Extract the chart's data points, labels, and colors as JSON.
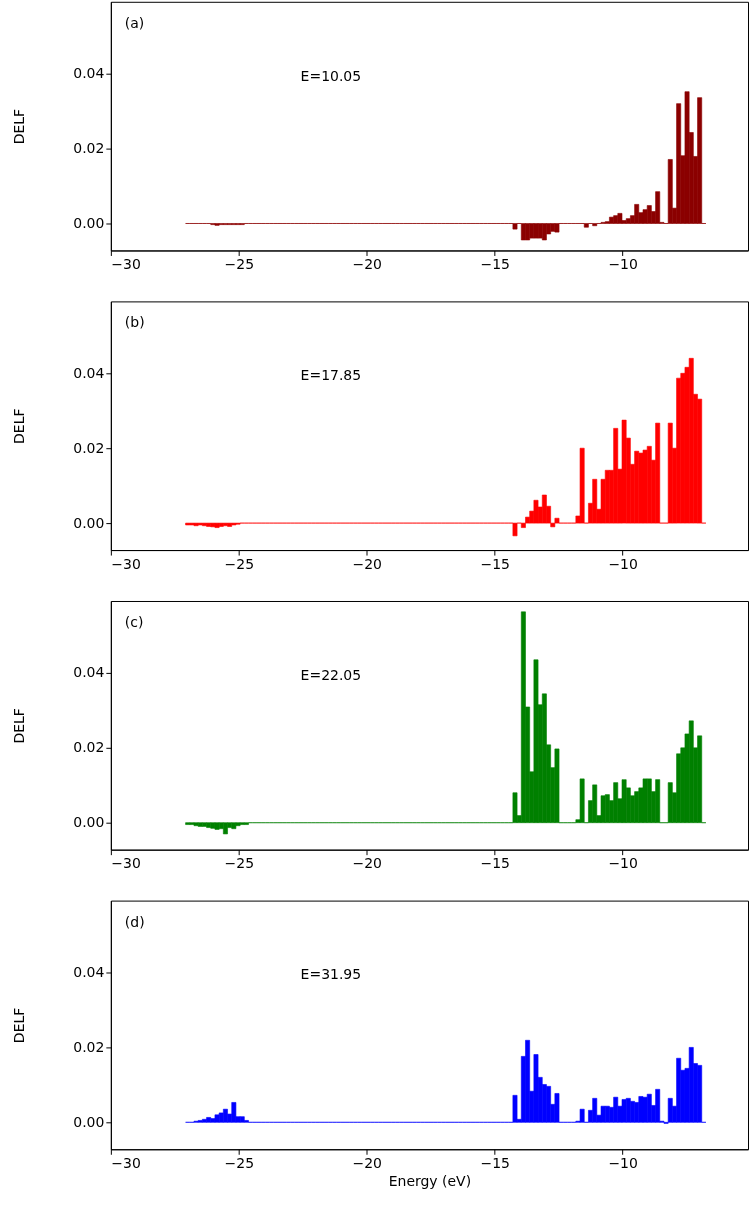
{
  "chart_data": [
    {
      "type": "histogram",
      "color": "#8b0000",
      "ylabel": "DELF",
      "annotations": [
        "(a)",
        "E=10.05"
      ],
      "xlim": [
        -30,
        -5.1
      ],
      "ylim": [
        -0.0072,
        0.0592
      ],
      "xticks": [
        {
          "value": -30,
          "label": "−30"
        },
        {
          "value": -25,
          "label": "−25"
        },
        {
          "value": -20,
          "label": "−20"
        },
        {
          "value": -15,
          "label": "−15"
        },
        {
          "value": -10,
          "label": "−10"
        }
      ],
      "yticks": [
        {
          "value": 0,
          "label": "0.00"
        },
        {
          "value": 0.02,
          "label": "0.02"
        },
        {
          "value": 0.04,
          "label": "0.04"
        }
      ],
      "bins": [
        -27.08,
        -26.916,
        -26.752,
        -26.588,
        -26.424,
        -26.26,
        -26.096,
        -25.932,
        -25.768,
        -25.604,
        -25.44,
        -25.276,
        -25.112,
        -24.948,
        -24.784,
        -24.62,
        -24.456,
        -24.292,
        -24.128,
        -23.964,
        -23.8,
        -23.636,
        -23.472,
        -23.308,
        -23.144,
        -22.98,
        -22.816,
        -22.652,
        -22.488,
        -22.324,
        -22.16,
        -21.996,
        -21.832,
        -21.668,
        -21.504,
        -21.34,
        -21.176,
        -21.012,
        -20.848,
        -20.684,
        -20.52,
        -20.356,
        -20.192,
        -20.028,
        -19.864,
        -19.7,
        -19.536,
        -19.372,
        -19.208,
        -19.044,
        -18.88,
        -18.716,
        -18.552,
        -18.388,
        -18.224,
        -18.06,
        -17.896,
        -17.732,
        -17.568,
        -17.404,
        -17.24,
        -17.076,
        -16.912,
        -16.748,
        -16.584,
        -16.42,
        -16.256,
        -16.092,
        -15.928,
        -15.764,
        -15.6,
        -15.436,
        -15.272,
        -15.108,
        -14.944,
        -14.78,
        -14.616,
        -14.452,
        -14.288,
        -14.124,
        -13.96,
        -13.796,
        -13.632,
        -13.468,
        -13.304,
        -13.14,
        -12.976,
        -12.812,
        -12.648,
        -12.484,
        -12.32,
        -12.156,
        -11.992,
        -11.828,
        -11.664,
        -11.5,
        -11.336,
        -11.172,
        -11.008,
        -10.844,
        -10.68,
        -10.516,
        -10.352,
        -10.188,
        -10.024,
        -9.86,
        -9.696,
        -9.532,
        -9.368,
        -9.204,
        -9.04,
        -8.876,
        -8.712,
        -8.548,
        -8.384,
        -8.22,
        -8.056,
        -7.892,
        -7.728,
        -7.564,
        -7.4,
        -7.236,
        -7.072,
        -6.908,
        -6.744
      ],
      "values": [
        0,
        0,
        0,
        0,
        0,
        0,
        -0.0003,
        -0.0005,
        -0.0003,
        -0.0003,
        -0.0003,
        -0.0003,
        -0.0003,
        -0.0003,
        0,
        0,
        0,
        0,
        0,
        0,
        0,
        0,
        0,
        0,
        0,
        0,
        0,
        0,
        0,
        0,
        0,
        0,
        0,
        0,
        0,
        0,
        0,
        0,
        0,
        0,
        0,
        0,
        0,
        0,
        0,
        0,
        0,
        0,
        0,
        0,
        0,
        0,
        0,
        0,
        0,
        0,
        0,
        0,
        0,
        0,
        0,
        0,
        0,
        0,
        0,
        0,
        0,
        0,
        0,
        0,
        0,
        0,
        0,
        0,
        0,
        0,
        0,
        0,
        -0.0015,
        0,
        -0.0044,
        -0.0044,
        -0.0039,
        -0.0039,
        -0.0039,
        -0.0044,
        -0.0028,
        -0.0021,
        -0.0023,
        0,
        0,
        0,
        0,
        0,
        0,
        -0.001,
        0,
        -0.0006,
        0,
        0.0003,
        0.0005,
        0.0017,
        0.0021,
        0.0027,
        0.0008,
        0.0013,
        0.0021,
        0.0051,
        0.0029,
        0.0037,
        0.0048,
        0.0032,
        0.0085,
        0.0003,
        0,
        0.0171,
        0.0041,
        0.032,
        0.0181,
        0.0352,
        0.0243,
        0.0179,
        0.0336,
        0
      ]
    },
    {
      "type": "histogram",
      "color": "#ff0000",
      "ylabel": "DELF",
      "annotations": [
        "(b)",
        "E=17.85"
      ],
      "xlim": [
        -30,
        -5.1
      ],
      "ylim": [
        -0.0072,
        0.0592
      ],
      "xticks": [
        {
          "value": -30,
          "label": "−30"
        },
        {
          "value": -25,
          "label": "−25"
        },
        {
          "value": -20,
          "label": "−20"
        },
        {
          "value": -15,
          "label": "−15"
        },
        {
          "value": -10,
          "label": "−10"
        }
      ],
      "yticks": [
        {
          "value": 0,
          "label": "0.00"
        },
        {
          "value": 0.02,
          "label": "0.02"
        },
        {
          "value": 0.04,
          "label": "0.04"
        }
      ],
      "bins": [
        -27.08,
        -26.916,
        -26.752,
        -26.588,
        -26.424,
        -26.26,
        -26.096,
        -25.932,
        -25.768,
        -25.604,
        -25.44,
        -25.276,
        -25.112,
        -24.948,
        -24.784,
        -24.62,
        -24.456,
        -24.292,
        -24.128,
        -23.964,
        -23.8,
        -23.636,
        -23.472,
        -23.308,
        -23.144,
        -22.98,
        -22.816,
        -22.652,
        -22.488,
        -22.324,
        -22.16,
        -21.996,
        -21.832,
        -21.668,
        -21.504,
        -21.34,
        -21.176,
        -21.012,
        -20.848,
        -20.684,
        -20.52,
        -20.356,
        -20.192,
        -20.028,
        -19.864,
        -19.7,
        -19.536,
        -19.372,
        -19.208,
        -19.044,
        -18.88,
        -18.716,
        -18.552,
        -18.388,
        -18.224,
        -18.06,
        -17.896,
        -17.732,
        -17.568,
        -17.404,
        -17.24,
        -17.076,
        -16.912,
        -16.748,
        -16.584,
        -16.42,
        -16.256,
        -16.092,
        -15.928,
        -15.764,
        -15.6,
        -15.436,
        -15.272,
        -15.108,
        -14.944,
        -14.78,
        -14.616,
        -14.452,
        -14.288,
        -14.124,
        -13.96,
        -13.796,
        -13.632,
        -13.468,
        -13.304,
        -13.14,
        -12.976,
        -12.812,
        -12.648,
        -12.484,
        -12.32,
        -12.156,
        -11.992,
        -11.828,
        -11.664,
        -11.5,
        -11.336,
        -11.172,
        -11.008,
        -10.844,
        -10.68,
        -10.516,
        -10.352,
        -10.188,
        -10.024,
        -9.86,
        -9.696,
        -9.532,
        -9.368,
        -9.204,
        -9.04,
        -8.876,
        -8.712,
        -8.548,
        -8.384,
        -8.22,
        -8.056,
        -7.892,
        -7.728,
        -7.564,
        -7.4,
        -7.236,
        -7.072,
        -6.908,
        -6.744
      ],
      "values": [
        -0.0005,
        -0.0005,
        -0.0007,
        -0.0005,
        -0.0007,
        -0.0009,
        -0.001,
        -0.0012,
        -0.0009,
        -0.0007,
        -0.0009,
        -0.0005,
        -0.0003,
        0,
        0,
        0,
        0,
        0,
        0,
        0,
        0,
        0,
        0,
        0,
        0,
        0,
        0,
        0,
        0,
        0,
        0,
        0,
        0,
        0,
        0,
        0,
        0,
        0,
        0,
        0,
        0,
        0,
        0,
        0,
        0,
        0,
        0,
        0,
        0,
        0,
        0,
        0,
        0,
        0,
        0,
        0,
        0,
        0,
        0,
        0,
        0,
        0,
        0,
        0,
        0,
        0,
        0,
        0,
        0,
        0,
        0,
        0,
        0,
        0,
        0,
        0,
        0,
        0,
        -0.0034,
        0,
        -0.0012,
        0.0016,
        0.0032,
        0.0061,
        0.0043,
        0.0075,
        0.0045,
        -0.001,
        0.0013,
        0,
        0,
        0,
        0,
        0.0019,
        0.02,
        0,
        0.0053,
        0.0117,
        0.0037,
        0.0117,
        0.0141,
        0.0141,
        0.0253,
        0.0144,
        0.0275,
        0.0227,
        0.0157,
        0.0192,
        0.0187,
        0.0195,
        0.0205,
        0.0168,
        0.0267,
        0,
        0,
        0.0267,
        0.02,
        0.0387,
        0.04,
        0.0416,
        0.044,
        0.0344,
        0.0331,
        0
      ]
    },
    {
      "type": "histogram",
      "color": "#008000",
      "ylabel": "DELF",
      "annotations": [
        "(c)",
        "E=22.05"
      ],
      "xlim": [
        -30,
        -5.1
      ],
      "ylim": [
        -0.0072,
        0.0592
      ],
      "xticks": [
        {
          "value": -30,
          "label": "−30"
        },
        {
          "value": -25,
          "label": "−25"
        },
        {
          "value": -20,
          "label": "−20"
        },
        {
          "value": -15,
          "label": "−15"
        },
        {
          "value": -10,
          "label": "−10"
        }
      ],
      "yticks": [
        {
          "value": 0,
          "label": "0.00"
        },
        {
          "value": 0.02,
          "label": "0.02"
        },
        {
          "value": 0.04,
          "label": "0.04"
        }
      ],
      "bins": [
        -27.08,
        -26.916,
        -26.752,
        -26.588,
        -26.424,
        -26.26,
        -26.096,
        -25.932,
        -25.768,
        -25.604,
        -25.44,
        -25.276,
        -25.112,
        -24.948,
        -24.784,
        -24.62,
        -24.456,
        -24.292,
        -24.128,
        -23.964,
        -23.8,
        -23.636,
        -23.472,
        -23.308,
        -23.144,
        -22.98,
        -22.816,
        -22.652,
        -22.488,
        -22.324,
        -22.16,
        -21.996,
        -21.832,
        -21.668,
        -21.504,
        -21.34,
        -21.176,
        -21.012,
        -20.848,
        -20.684,
        -20.52,
        -20.356,
        -20.192,
        -20.028,
        -19.864,
        -19.7,
        -19.536,
        -19.372,
        -19.208,
        -19.044,
        -18.88,
        -18.716,
        -18.552,
        -18.388,
        -18.224,
        -18.06,
        -17.896,
        -17.732,
        -17.568,
        -17.404,
        -17.24,
        -17.076,
        -16.912,
        -16.748,
        -16.584,
        -16.42,
        -16.256,
        -16.092,
        -15.928,
        -15.764,
        -15.6,
        -15.436,
        -15.272,
        -15.108,
        -14.944,
        -14.78,
        -14.616,
        -14.452,
        -14.288,
        -14.124,
        -13.96,
        -13.796,
        -13.632,
        -13.468,
        -13.304,
        -13.14,
        -12.976,
        -12.812,
        -12.648,
        -12.484,
        -12.32,
        -12.156,
        -11.992,
        -11.828,
        -11.664,
        -11.5,
        -11.336,
        -11.172,
        -11.008,
        -10.844,
        -10.68,
        -10.516,
        -10.352,
        -10.188,
        -10.024,
        -9.86,
        -9.696,
        -9.532,
        -9.368,
        -9.204,
        -9.04,
        -8.876,
        -8.712,
        -8.548,
        -8.384,
        -8.22,
        -8.056,
        -7.892,
        -7.728,
        -7.564,
        -7.4,
        -7.236,
        -7.072,
        -6.908,
        -6.744
      ],
      "values": [
        -0.0005,
        -0.0005,
        -0.0008,
        -0.001,
        -0.001,
        -0.0013,
        -0.0015,
        -0.0018,
        -0.0016,
        -0.003,
        -0.0013,
        -0.0016,
        -0.0008,
        -0.0005,
        -0.0005,
        0,
        0,
        0,
        0,
        0,
        0,
        0,
        0,
        0,
        0,
        0,
        0,
        0,
        0,
        0,
        0,
        0,
        0,
        0,
        0,
        0,
        0,
        0,
        0,
        0,
        0,
        0,
        0,
        0,
        0,
        0,
        0,
        0,
        0,
        0,
        0,
        0,
        0,
        0,
        0,
        0,
        0,
        0,
        0,
        0,
        0,
        0,
        0,
        0,
        0,
        0,
        0,
        0,
        0,
        0,
        0,
        0,
        0,
        0,
        0,
        0,
        0,
        0,
        0.008,
        0.0019,
        0.0563,
        0.0309,
        0.0136,
        0.0435,
        0.0315,
        0.0344,
        0.0208,
        0.0147,
        0.0197,
        0,
        0,
        0,
        0,
        0.0008,
        0.0117,
        0,
        0.0059,
        0.0101,
        0.0019,
        0.0072,
        0.0075,
        0.0059,
        0.0107,
        0.0064,
        0.0115,
        0.0093,
        0.0072,
        0.0083,
        0.0093,
        0.0117,
        0.0117,
        0.0083,
        0.0115,
        0,
        0,
        0.0107,
        0.008,
        0.0184,
        0.02,
        0.0237,
        0.0272,
        0.02,
        0.0232,
        0
      ]
    },
    {
      "type": "histogram",
      "color": "#0000ff",
      "ylabel": "DELF",
      "xlabel": "Energy (eV)",
      "annotations": [
        "(d)",
        "E=31.95"
      ],
      "xlim": [
        -30,
        -5.1
      ],
      "ylim": [
        -0.0072,
        0.0592
      ],
      "xticks": [
        {
          "value": -30,
          "label": "−30"
        },
        {
          "value": -25,
          "label": "−25"
        },
        {
          "value": -20,
          "label": "−20"
        },
        {
          "value": -15,
          "label": "−15"
        },
        {
          "value": -10,
          "label": "−10"
        }
      ],
      "yticks": [
        {
          "value": 0,
          "label": "0.00"
        },
        {
          "value": 0.02,
          "label": "0.02"
        },
        {
          "value": 0.04,
          "label": "0.04"
        }
      ],
      "bins": [
        -27.08,
        -26.916,
        -26.752,
        -26.588,
        -26.424,
        -26.26,
        -26.096,
        -25.932,
        -25.768,
        -25.604,
        -25.44,
        -25.276,
        -25.112,
        -24.948,
        -24.784,
        -24.62,
        -24.456,
        -24.292,
        -24.128,
        -23.964,
        -23.8,
        -23.636,
        -23.472,
        -23.308,
        -23.144,
        -22.98,
        -22.816,
        -22.652,
        -22.488,
        -22.324,
        -22.16,
        -21.996,
        -21.832,
        -21.668,
        -21.504,
        -21.34,
        -21.176,
        -21.012,
        -20.848,
        -20.684,
        -20.52,
        -20.356,
        -20.192,
        -20.028,
        -19.864,
        -19.7,
        -19.536,
        -19.372,
        -19.208,
        -19.044,
        -18.88,
        -18.716,
        -18.552,
        -18.388,
        -18.224,
        -18.06,
        -17.896,
        -17.732,
        -17.568,
        -17.404,
        -17.24,
        -17.076,
        -16.912,
        -16.748,
        -16.584,
        -16.42,
        -16.256,
        -16.092,
        -15.928,
        -15.764,
        -15.6,
        -15.436,
        -15.272,
        -15.108,
        -14.944,
        -14.78,
        -14.616,
        -14.452,
        -14.288,
        -14.124,
        -13.96,
        -13.796,
        -13.632,
        -13.468,
        -13.304,
        -13.14,
        -12.976,
        -12.812,
        -12.648,
        -12.484,
        -12.32,
        -12.156,
        -11.992,
        -11.828,
        -11.664,
        -11.5,
        -11.336,
        -11.172,
        -11.008,
        -10.844,
        -10.68,
        -10.516,
        -10.352,
        -10.188,
        -10.024,
        -9.86,
        -9.696,
        -9.532,
        -9.368,
        -9.204,
        -9.04,
        -8.876,
        -8.712,
        -8.548,
        -8.384,
        -8.22,
        -8.056,
        -7.892,
        -7.728,
        -7.564,
        -7.4,
        -7.236,
        -7.072,
        -6.908,
        -6.744
      ],
      "values": [
        0,
        0,
        0.0003,
        0.0005,
        0.0008,
        0.0013,
        0.001,
        0.002,
        0.0025,
        0.0035,
        0.0022,
        0.0053,
        0.0015,
        0.0015,
        0.0005,
        0,
        0,
        0,
        0,
        0,
        0,
        0,
        0,
        0,
        0,
        0,
        0,
        0,
        0,
        0,
        0,
        0,
        0,
        0,
        0,
        0,
        0,
        0,
        0,
        0,
        0,
        0,
        0,
        0,
        0,
        0,
        0,
        0,
        0,
        0,
        0,
        0,
        0,
        0,
        0,
        0,
        0,
        0,
        0,
        0,
        0,
        0,
        0,
        0,
        0,
        0,
        0,
        0,
        0,
        0,
        0,
        0,
        0,
        0,
        0,
        0,
        0,
        0,
        0.0072,
        0.0008,
        0.0176,
        0.0219,
        0.0083,
        0.0181,
        0.012,
        0.0101,
        0.0096,
        0.0048,
        0.0077,
        0,
        0,
        0,
        0,
        0.0003,
        0.0035,
        0,
        0.0032,
        0.0064,
        0.0019,
        0.0043,
        0.0043,
        0.004,
        0.0067,
        0.0043,
        0.0061,
        0.0064,
        0.0056,
        0.0053,
        0.0069,
        0.0067,
        0.0075,
        0.0045,
        0.0088,
        0.0003,
        -0.0003,
        0.0064,
        0.0043,
        0.0171,
        0.0139,
        0.0144,
        0.02,
        0.0157,
        0.0152,
        0
      ]
    }
  ]
}
